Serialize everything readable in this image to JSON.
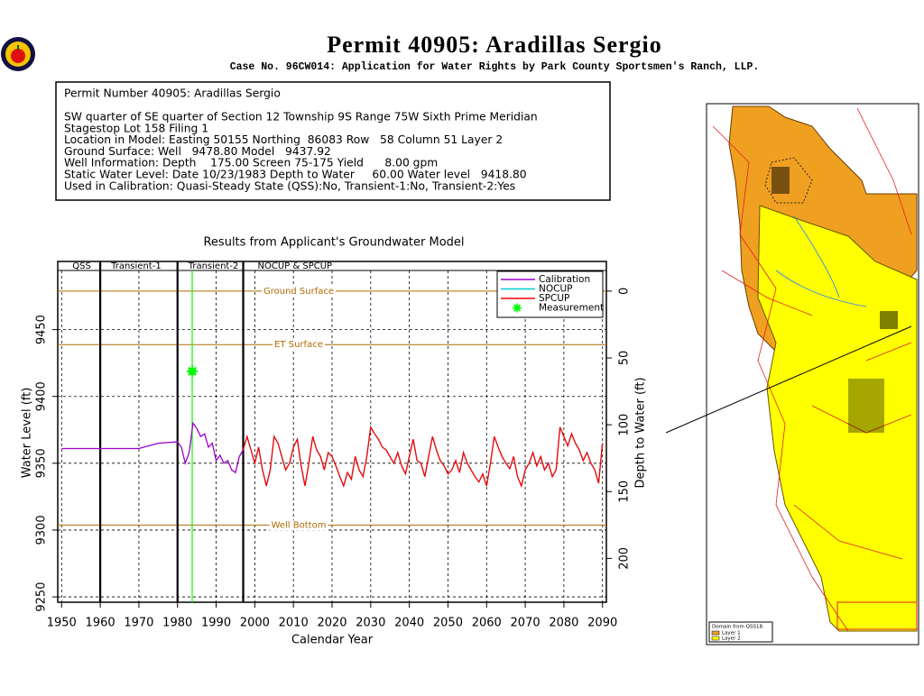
{
  "header": {
    "title": "Permit 40905:  Aradillas Sergio",
    "subtitle": "Case No. 96CW014: Application for Water Rights by Park County Sportsmen's Ranch, LLP."
  },
  "info": {
    "lines": [
      "Permit Number 40905: Aradillas Sergio",
      "SW quarter of SE quarter of Section 12 Township 9S Range 75W Sixth Prime Meridian",
      "Stagestop Lot 158 Filing 1",
      "Location in Model: Easting 50155 Northing  86083 Row   58 Column 51 Layer 2",
      "Ground Surface: Well   9478.80 Model   9437.92",
      "Well Information: Depth    175.00 Screen 75-175 Yield      8.00 gpm",
      "Static Water Level: Date 10/23/1983 Depth to Water     60.00 Water level   9418.80",
      "Used in Calibration: Quasi-Steady State (QSS):No, Transient-1:No, Transient-2:Yes"
    ]
  },
  "chart_data": {
    "type": "line",
    "title": "Results from Applicant's Groundwater Model",
    "x_label": "Calendar Year",
    "y_label": "Water Level (ft)",
    "y2_label": "Depth to Water (ft)",
    "xlim": [
      1949,
      2091
    ],
    "xticks": [
      1950,
      1960,
      1970,
      1980,
      1990,
      2000,
      2010,
      2020,
      2030,
      2040,
      2050,
      2060,
      2070,
      2080,
      2090
    ],
    "ylim": [
      9246,
      9501
    ],
    "yticks": [
      9250,
      9300,
      9350,
      9400,
      9450
    ],
    "y2lim": [
      232.8,
      -22.2
    ],
    "y2ticks": [
      0,
      50,
      100,
      150,
      200
    ],
    "grid": true,
    "periods": [
      "QSS",
      "Transient-1",
      "Transient-2",
      "NOCUP & SPCUP"
    ],
    "period_breaks": [
      1960,
      1980,
      1997
    ],
    "reference_lines": [
      {
        "label": "Ground Surface",
        "value": 9478.8
      },
      {
        "label": "ET Surface",
        "value": 9438.8
      },
      {
        "label": "Well Bottom",
        "value": 9303.8
      }
    ],
    "reference_color": "#b06a00",
    "measurement": {
      "name": "Measurement",
      "color": "#00ff00",
      "x": 1983.8,
      "y": 9418.8
    },
    "series": [
      {
        "name": "Calibration",
        "color": "#9900cc",
        "x": [
          1950,
          1970,
          1975,
          1980,
          1981,
          1982,
          1983,
          1984,
          1985,
          1986,
          1987,
          1988,
          1989,
          1990,
          1991,
          1992,
          1993,
          1994,
          1995,
          1996,
          1997
        ],
        "values": [
          9361,
          9361,
          9365,
          9366,
          9362,
          9350,
          9358,
          9380,
          9376,
          9370,
          9372,
          9362,
          9365,
          9352,
          9356,
          9350,
          9352,
          9345,
          9343,
          9355,
          9360
        ]
      },
      {
        "name": "NOCUP",
        "color": "#00cccc",
        "x": [
          1997,
          1998,
          1999,
          2000,
          2001,
          2002,
          2003,
          2004,
          2005,
          2006,
          2007,
          2008,
          2009,
          2010,
          2011,
          2012,
          2013,
          2014,
          2015,
          2016,
          2017,
          2018,
          2019,
          2020,
          2021,
          2022,
          2023,
          2024,
          2025,
          2026,
          2027,
          2028,
          2029,
          2030,
          2031,
          2032,
          2033,
          2034,
          2035,
          2036,
          2037,
          2038,
          2039,
          2040,
          2041,
          2042,
          2043,
          2044,
          2045,
          2046,
          2047,
          2048,
          2049,
          2050,
          2051,
          2052,
          2053,
          2054,
          2055,
          2056,
          2057,
          2058,
          2059,
          2060,
          2061,
          2062,
          2063,
          2064,
          2065,
          2066,
          2067,
          2068,
          2069,
          2070,
          2071,
          2072,
          2073,
          2074,
          2075,
          2076,
          2077,
          2078,
          2079,
          2080,
          2081,
          2082,
          2083,
          2084,
          2085,
          2086,
          2087,
          2088,
          2089,
          2090
        ],
        "values": [
          9360,
          9370,
          9360,
          9350,
          9362,
          9345,
          9333,
          9345,
          9370,
          9365,
          9355,
          9345,
          9350,
          9362,
          9368,
          9348,
          9333,
          9350,
          9370,
          9360,
          9355,
          9345,
          9358,
          9355,
          9348,
          9340,
          9333,
          9343,
          9338,
          9355,
          9345,
          9340,
          9355,
          9377,
          9372,
          9368,
          9362,
          9360,
          9355,
          9350,
          9358,
          9348,
          9342,
          9355,
          9368,
          9352,
          9350,
          9340,
          9355,
          9370,
          9360,
          9352,
          9348,
          9342,
          9345,
          9352,
          9343,
          9358,
          9350,
          9345,
          9340,
          9336,
          9342,
          9333,
          9350,
          9370,
          9362,
          9355,
          9350,
          9346,
          9355,
          9340,
          9333,
          9345,
          9350,
          9358,
          9348,
          9355,
          9345,
          9350,
          9340,
          9345,
          9377,
          9370,
          9363,
          9372,
          9365,
          9360,
          9352,
          9358,
          9350,
          9345,
          9335,
          9365
        ]
      },
      {
        "name": "SPCUP",
        "color": "#ff0000",
        "x": [
          1997,
          1998,
          1999,
          2000,
          2001,
          2002,
          2003,
          2004,
          2005,
          2006,
          2007,
          2008,
          2009,
          2010,
          2011,
          2012,
          2013,
          2014,
          2015,
          2016,
          2017,
          2018,
          2019,
          2020,
          2021,
          2022,
          2023,
          2024,
          2025,
          2026,
          2027,
          2028,
          2029,
          2030,
          2031,
          2032,
          2033,
          2034,
          2035,
          2036,
          2037,
          2038,
          2039,
          2040,
          2041,
          2042,
          2043,
          2044,
          2045,
          2046,
          2047,
          2048,
          2049,
          2050,
          2051,
          2052,
          2053,
          2054,
          2055,
          2056,
          2057,
          2058,
          2059,
          2060,
          2061,
          2062,
          2063,
          2064,
          2065,
          2066,
          2067,
          2068,
          2069,
          2070,
          2071,
          2072,
          2073,
          2074,
          2075,
          2076,
          2077,
          2078,
          2079,
          2080,
          2081,
          2082,
          2083,
          2084,
          2085,
          2086,
          2087,
          2088,
          2089,
          2090
        ],
        "values": [
          9360,
          9370,
          9360,
          9350,
          9362,
          9345,
          9333,
          9345,
          9370,
          9365,
          9355,
          9345,
          9350,
          9362,
          9368,
          9348,
          9333,
          9350,
          9370,
          9360,
          9355,
          9345,
          9358,
          9355,
          9348,
          9340,
          9333,
          9343,
          9338,
          9355,
          9345,
          9340,
          9355,
          9377,
          9372,
          9368,
          9362,
          9360,
          9355,
          9350,
          9358,
          9348,
          9342,
          9355,
          9368,
          9352,
          9350,
          9340,
          9355,
          9370,
          9360,
          9352,
          9348,
          9342,
          9345,
          9352,
          9343,
          9358,
          9350,
          9345,
          9340,
          9336,
          9342,
          9333,
          9350,
          9370,
          9362,
          9355,
          9350,
          9346,
          9355,
          9340,
          9333,
          9345,
          9350,
          9358,
          9348,
          9355,
          9345,
          9350,
          9340,
          9345,
          9377,
          9370,
          9363,
          9372,
          9365,
          9360,
          9352,
          9358,
          9350,
          9345,
          9335,
          9365
        ]
      }
    ]
  },
  "map": {
    "legend": [
      "Domain from QSS18.",
      "Layer 1",
      "Layer 2"
    ]
  }
}
